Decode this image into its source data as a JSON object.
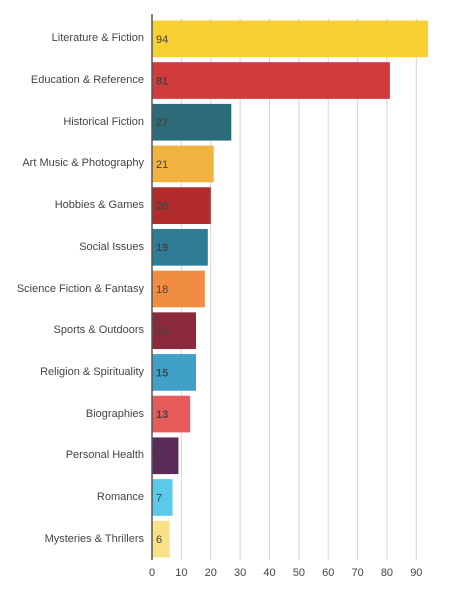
{
  "chart_data": {
    "type": "hbar",
    "categories": [
      "Literature & Fiction",
      "Education & Reference",
      "Historical Fiction",
      "Art Music & Photography",
      "Hobbies & Games",
      "Social Issues",
      "Science Fiction & Fantasy",
      "Sports & Outdoors",
      "Religion & Spirituality",
      "Biographies",
      "Personal Health",
      "Romance",
      "Mysteries & Thrillers"
    ],
    "values": [
      94,
      81,
      27,
      21,
      20,
      19,
      18,
      15,
      15,
      13,
      9,
      7,
      6
    ],
    "colors": [
      "#f9d031",
      "#d13b3b",
      "#2b6c78",
      "#f1b240",
      "#b12b2b",
      "#2f7c96",
      "#f08d42",
      "#8a2a3a",
      "#40a1c8",
      "#e85b5b",
      "#5a2a58",
      "#5bc9e8",
      "#f9e285"
    ],
    "xlim": [
      0,
      95
    ],
    "xticks": [
      0,
      10,
      20,
      30,
      40,
      50,
      60,
      70,
      80,
      90
    ],
    "grid": true
  }
}
